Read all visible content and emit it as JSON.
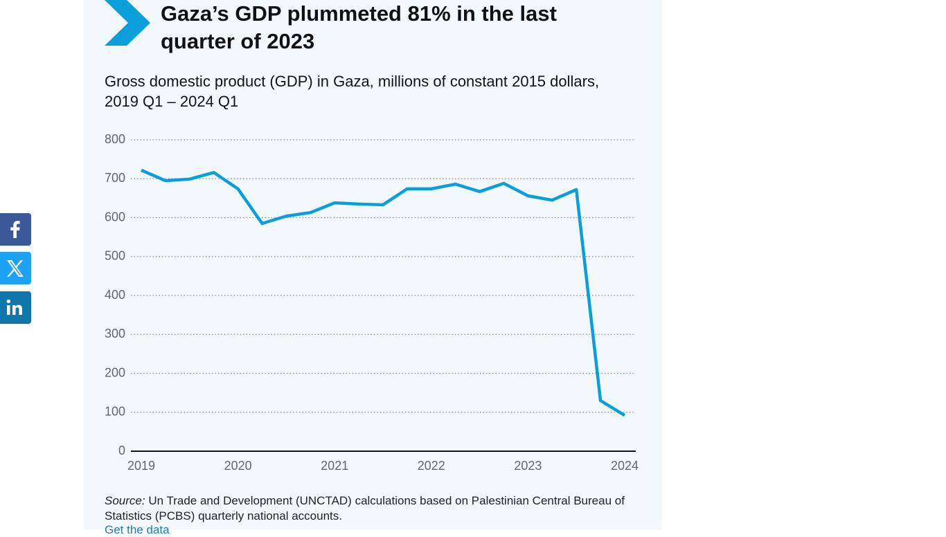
{
  "chart_data": {
    "type": "line",
    "title": "Gaza’s GDP plummeted 81% in the last quarter of 2023",
    "subtitle": "Gross domestic product (GDP) in Gaza, millions of constant 2015 dollars, 2019 Q1 – 2024 Q1",
    "x": [
      2019,
      2019.25,
      2019.5,
      2019.75,
      2020,
      2020.25,
      2020.5,
      2020.75,
      2021,
      2021.25,
      2021.5,
      2021.75,
      2022,
      2022.25,
      2022.5,
      2022.75,
      2023,
      2023.25,
      2023.5,
      2023.75,
      2024
    ],
    "series": [
      {
        "name": "GDP",
        "color": "#0a9fdb",
        "values": [
          722,
          695,
          699,
          716,
          674,
          585,
          604,
          613,
          638,
          635,
          633,
          674,
          674,
          686,
          667,
          688,
          656,
          645,
          672,
          130,
          92
        ]
      }
    ],
    "xlim": [
      2019,
      2024
    ],
    "xticks": [
      2019,
      2020,
      2021,
      2022,
      2023,
      2024
    ],
    "ylim": [
      0,
      800
    ],
    "yticks": [
      0,
      100,
      200,
      300,
      400,
      500,
      600,
      700,
      800
    ],
    "grid": true,
    "source_label": "Source:",
    "source": "Un Trade and Development (UNCTAD) calculations based on Palestinian Central Bureau of Statistics (PCBS) quarterly national accounts.",
    "link": "Get the data"
  }
}
